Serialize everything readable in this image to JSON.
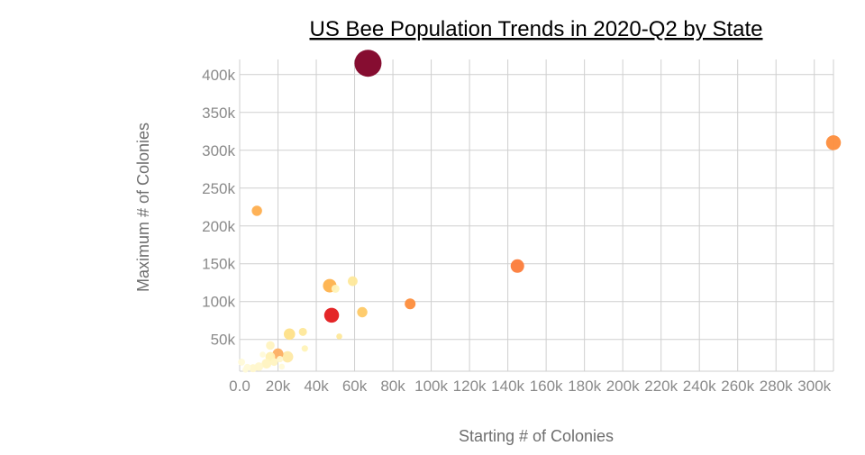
{
  "chart_data": {
    "type": "scatter",
    "title": "US Bee Population Trends in 2020-Q2 by State",
    "xlabel": "Starting # of Colonies",
    "ylabel": "Maximum # of Colonies",
    "xlim": [
      0,
      310000
    ],
    "ylim": [
      8000,
      420000
    ],
    "x_ticks": [
      0,
      20000,
      40000,
      60000,
      80000,
      100000,
      120000,
      140000,
      160000,
      180000,
      200000,
      220000,
      240000,
      260000,
      280000,
      300000
    ],
    "x_tick_labels": [
      "0.0",
      "20k",
      "40k",
      "60k",
      "80k",
      "100k",
      "120k",
      "140k",
      "160k",
      "180k",
      "200k",
      "220k",
      "240k",
      "260k",
      "280k",
      "300k"
    ],
    "y_ticks": [
      50000,
      100000,
      150000,
      200000,
      250000,
      300000,
      350000,
      400000
    ],
    "y_tick_labels": [
      "50k",
      "100k",
      "150k",
      "200k",
      "250k",
      "300k",
      "350k",
      "400k"
    ],
    "grid": true,
    "legend": "none",
    "size_and_color_encode": "magnitude",
    "points": [
      {
        "x": 67000,
        "y": 415000,
        "size": 1.0,
        "color": "#800026"
      },
      {
        "x": 310000,
        "y": 310000,
        "size": 0.55,
        "color": "#fd8d3c"
      },
      {
        "x": 145000,
        "y": 147000,
        "size": 0.5,
        "color": "#fc7c3a"
      },
      {
        "x": 9000,
        "y": 220000,
        "size": 0.38,
        "color": "#feae4e"
      },
      {
        "x": 89000,
        "y": 97000,
        "size": 0.4,
        "color": "#fd8d3c"
      },
      {
        "x": 48000,
        "y": 82000,
        "size": 0.55,
        "color": "#e31a1c"
      },
      {
        "x": 47000,
        "y": 121000,
        "size": 0.5,
        "color": "#feb24c"
      },
      {
        "x": 64000,
        "y": 86000,
        "size": 0.38,
        "color": "#fec966"
      },
      {
        "x": 59000,
        "y": 127000,
        "size": 0.36,
        "color": "#fee89a"
      },
      {
        "x": 50000,
        "y": 117000,
        "size": 0.3,
        "color": "#fff3b8"
      },
      {
        "x": 26000,
        "y": 57000,
        "size": 0.42,
        "color": "#fee088"
      },
      {
        "x": 33000,
        "y": 60000,
        "size": 0.3,
        "color": "#fee89a"
      },
      {
        "x": 34000,
        "y": 38000,
        "size": 0.24,
        "color": "#fff3b8"
      },
      {
        "x": 52000,
        "y": 54000,
        "size": 0.22,
        "color": "#fee89a"
      },
      {
        "x": 20000,
        "y": 31000,
        "size": 0.4,
        "color": "#fdae61"
      },
      {
        "x": 25000,
        "y": 27000,
        "size": 0.42,
        "color": "#fee9a5"
      },
      {
        "x": 16000,
        "y": 27000,
        "size": 0.36,
        "color": "#fff0b3"
      },
      {
        "x": 16000,
        "y": 42000,
        "size": 0.32,
        "color": "#fff3c0"
      },
      {
        "x": 14000,
        "y": 18000,
        "size": 0.36,
        "color": "#fff3c0"
      },
      {
        "x": 10000,
        "y": 14000,
        "size": 0.32,
        "color": "#fff7cc"
      },
      {
        "x": 7000,
        "y": 12000,
        "size": 0.3,
        "color": "#fff7cc"
      },
      {
        "x": 4000,
        "y": 13000,
        "size": 0.26,
        "color": "#fffad8"
      },
      {
        "x": 1000,
        "y": 20000,
        "size": 0.26,
        "color": "#fffad8"
      },
      {
        "x": 18000,
        "y": 20000,
        "size": 0.28,
        "color": "#fff3c0"
      },
      {
        "x": 21000,
        "y": 24000,
        "size": 0.24,
        "color": "#fff7cc"
      },
      {
        "x": 12000,
        "y": 30000,
        "size": 0.22,
        "color": "#fffad8"
      },
      {
        "x": 3000,
        "y": 10000,
        "size": 0.22,
        "color": "#fffad8"
      },
      {
        "x": 22000,
        "y": 14000,
        "size": 0.22,
        "color": "#fffad8"
      }
    ]
  }
}
